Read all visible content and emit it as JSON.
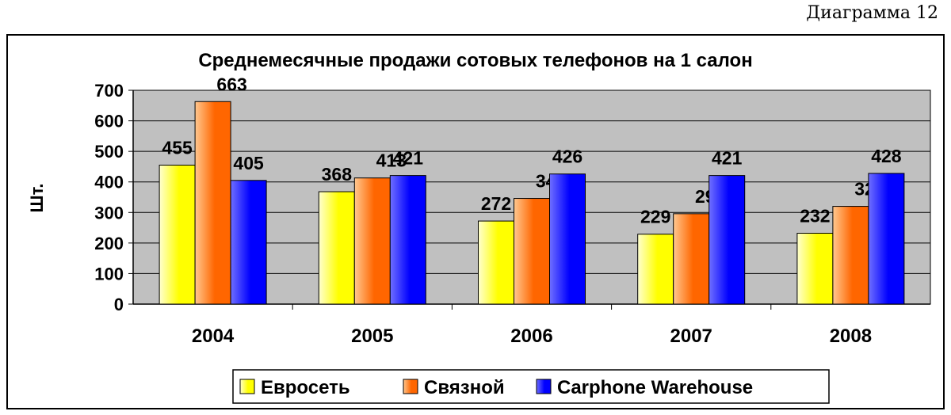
{
  "page": {
    "caption": "Диаграмма 12"
  },
  "chart_data": {
    "type": "bar",
    "title": "Среднемесячные продажи сотовых телефонов на 1 салон",
    "xlabel": "",
    "ylabel": "Шт.",
    "categories": [
      "2004",
      "2005",
      "2006",
      "2007",
      "2008"
    ],
    "series": [
      {
        "name": "Евросеть",
        "values": [
          455,
          368,
          272,
          229,
          232
        ]
      },
      {
        "name": "Связной",
        "values": [
          663,
          413,
          346,
          296,
          320
        ]
      },
      {
        "name": "Carphone Warehouse",
        "values": [
          405,
          421,
          426,
          421,
          428
        ]
      }
    ],
    "ylim": [
      0,
      700
    ],
    "yticks": [
      0,
      100,
      200,
      300,
      400,
      500,
      600,
      700
    ],
    "grid": true,
    "plot_background": "#c0c0c0",
    "legend_position": "bottom",
    "colors": {
      "series": [
        "#ffff00",
        "#ff6600",
        "#0000ff"
      ],
      "gradient_light": [
        "#ffffd0",
        "#ffc890",
        "#6f6fff"
      ],
      "gridline": "#000000"
    },
    "data_labels": true
  }
}
